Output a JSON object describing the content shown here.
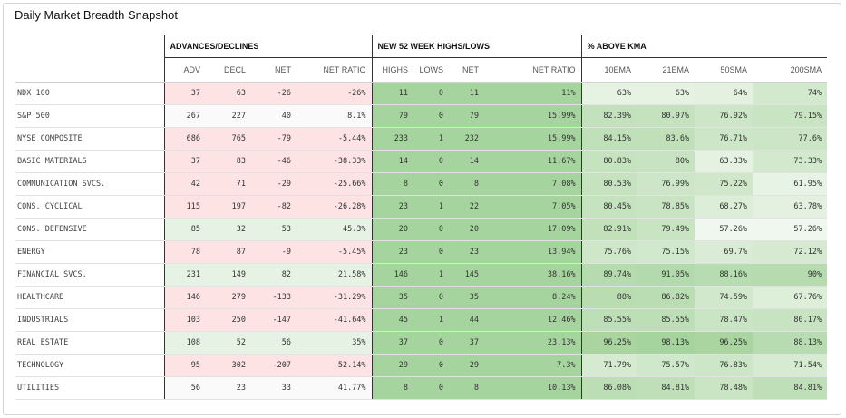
{
  "title": "Daily Market Breadth Snapshot",
  "groups": {
    "advances_declines": "ADVANCES/DECLINES",
    "highs_lows": "NEW 52 WEEK HIGHS/LOWS",
    "above_kma": "% ABOVE KMA"
  },
  "columns": [
    "ADV",
    "DECL",
    "NET",
    "NET RATIO",
    "HIGHS",
    "LOWS",
    "NET",
    "NET RATIO",
    "10EMA",
    "21EMA",
    "50SMA",
    "200SMA"
  ],
  "rows": [
    {
      "name": "NDX 100",
      "cells": [
        "37",
        "63",
        "-26",
        "-26%",
        "11",
        "0",
        "11",
        "11%",
        "63%",
        "63%",
        "64%",
        "74%"
      ]
    },
    {
      "name": "S&P 500",
      "cells": [
        "267",
        "227",
        "40",
        "8.1%",
        "79",
        "0",
        "79",
        "15.99%",
        "82.39%",
        "80.97%",
        "76.92%",
        "79.15%"
      ]
    },
    {
      "name": "NYSE COMPOSITE",
      "cells": [
        "686",
        "765",
        "-79",
        "-5.44%",
        "233",
        "1",
        "232",
        "15.99%",
        "84.15%",
        "83.6%",
        "76.71%",
        "77.6%"
      ]
    },
    {
      "name": "BASIC MATERIALS",
      "cells": [
        "37",
        "83",
        "-46",
        "-38.33%",
        "14",
        "0",
        "14",
        "11.67%",
        "80.83%",
        "80%",
        "63.33%",
        "73.33%"
      ]
    },
    {
      "name": "COMMUNICATION SVCS.",
      "cells": [
        "42",
        "71",
        "-29",
        "-25.66%",
        "8",
        "0",
        "8",
        "7.08%",
        "80.53%",
        "76.99%",
        "75.22%",
        "61.95%"
      ]
    },
    {
      "name": "CONS. CYCLICAL",
      "cells": [
        "115",
        "197",
        "-82",
        "-26.28%",
        "23",
        "1",
        "22",
        "7.05%",
        "80.45%",
        "78.85%",
        "68.27%",
        "63.78%"
      ]
    },
    {
      "name": "CONS. DEFENSIVE",
      "cells": [
        "85",
        "32",
        "53",
        "45.3%",
        "20",
        "0",
        "20",
        "17.09%",
        "82.91%",
        "79.49%",
        "57.26%",
        "57.26%"
      ]
    },
    {
      "name": "ENERGY",
      "cells": [
        "78",
        "87",
        "-9",
        "-5.45%",
        "23",
        "0",
        "23",
        "13.94%",
        "75.76%",
        "75.15%",
        "69.7%",
        "72.12%"
      ]
    },
    {
      "name": "FINANCIAL SVCS.",
      "cells": [
        "231",
        "149",
        "82",
        "21.58%",
        "146",
        "1",
        "145",
        "38.16%",
        "89.74%",
        "91.05%",
        "88.16%",
        "90%"
      ]
    },
    {
      "name": "HEALTHCARE",
      "cells": [
        "146",
        "279",
        "-133",
        "-31.29%",
        "35",
        "0",
        "35",
        "8.24%",
        "88%",
        "86.82%",
        "74.59%",
        "67.76%"
      ]
    },
    {
      "name": "INDUSTRIALS",
      "cells": [
        "103",
        "250",
        "-147",
        "-41.64%",
        "45",
        "1",
        "44",
        "12.46%",
        "85.55%",
        "85.55%",
        "78.47%",
        "80.17%"
      ]
    },
    {
      "name": "REAL ESTATE",
      "cells": [
        "108",
        "52",
        "56",
        "35%",
        "37",
        "0",
        "37",
        "23.13%",
        "96.25%",
        "98.13%",
        "96.25%",
        "88.13%"
      ]
    },
    {
      "name": "TECHNOLOGY",
      "cells": [
        "95",
        "302",
        "-207",
        "-52.14%",
        "29",
        "0",
        "29",
        "7.3%",
        "71.79%",
        "75.57%",
        "76.83%",
        "71.54%"
      ]
    },
    {
      "name": "UTILITIES",
      "cells": [
        "56",
        "23",
        "33",
        "41.77%",
        "8",
        "0",
        "8",
        "10.13%",
        "86.08%",
        "84.81%",
        "78.48%",
        "84.81%"
      ]
    }
  ],
  "colors": {
    "negative": "#fde3e3",
    "neutral": "#fafafa",
    "positive_light": "#e6f2e3",
    "positive": "#c9e5c3",
    "positive_strong": "#a9d6a1",
    "highs_lows_band": "#a6d49e",
    "header_rule": "#333333"
  }
}
